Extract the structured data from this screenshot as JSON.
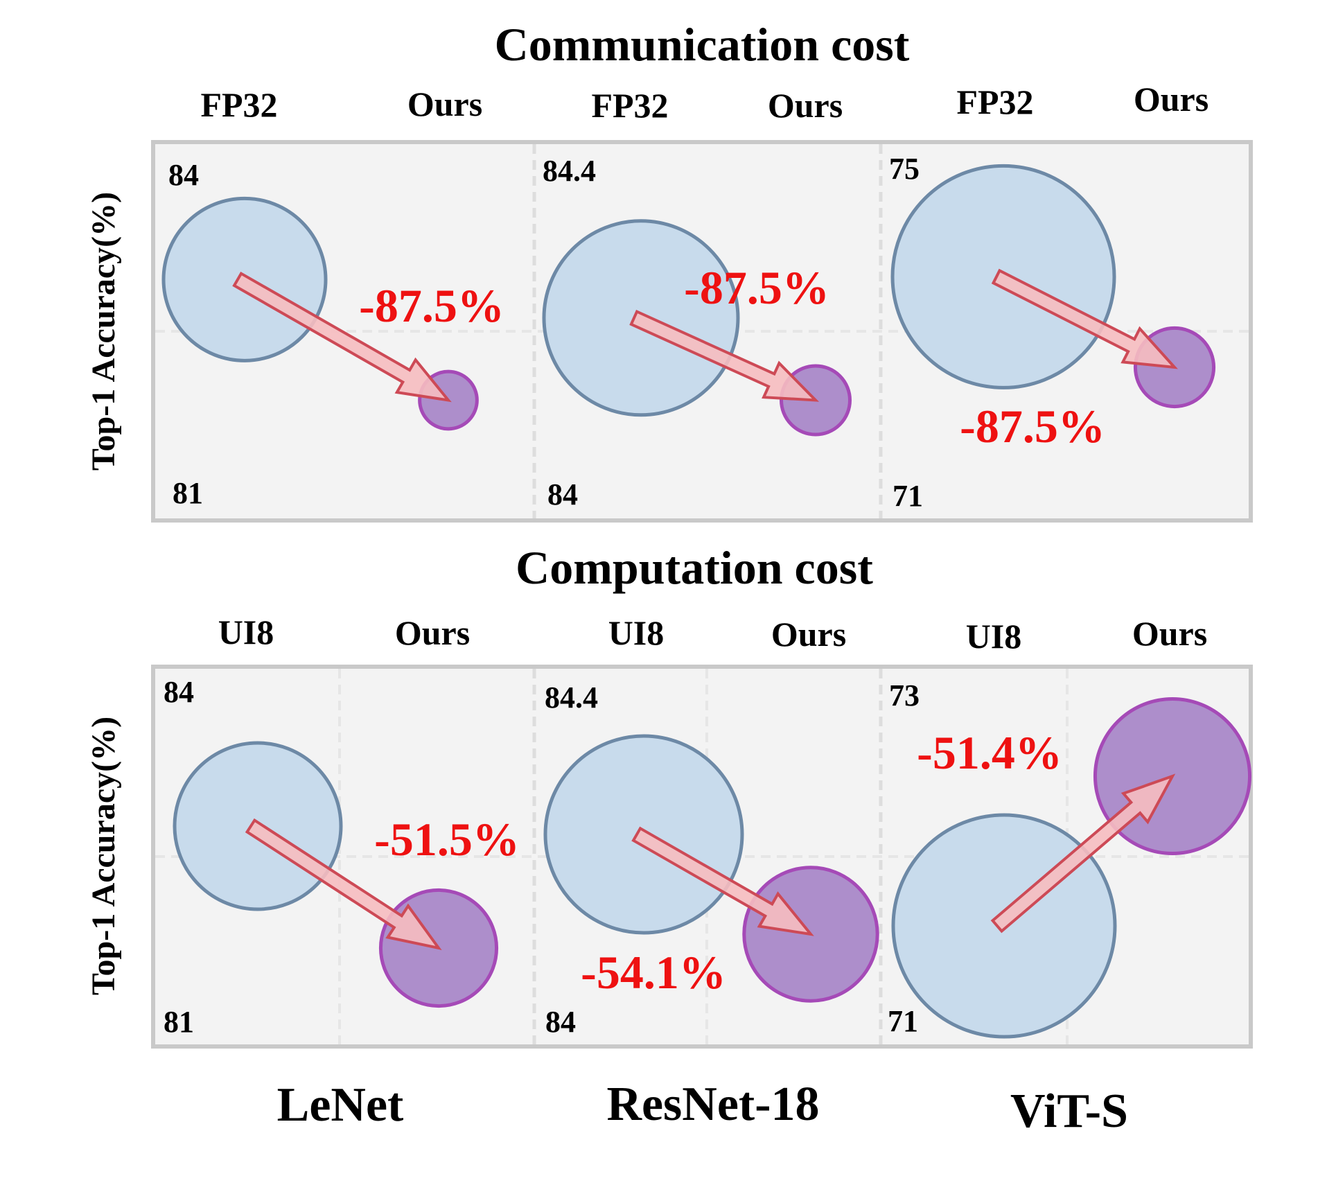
{
  "chart_data": {
    "type": "bubble-comparison",
    "columns": [
      "LeNet",
      "ResNet-18",
      "ViT-S"
    ],
    "y_axis_label": "Top-1 Accuracy(%)",
    "colors": {
      "baseline_fill": "#c8dbec",
      "baseline_stroke": "#6d89a6",
      "ours_fill": "#ad8ecb",
      "ours_stroke": "#a54ab7",
      "arrow_fill": "#f6bcc0",
      "arrow_stroke": "#cd4a56",
      "reduction_text": "#ee1111",
      "panel_bg": "#f3f3f3",
      "panel_border": "#c9c9c9",
      "divider": "#dddddd"
    },
    "panels": [
      {
        "title": "Communication cost",
        "baseline_name": "FP32",
        "ours_name": "Ours",
        "cells": [
          {
            "model": "LeNet",
            "y_top": "84",
            "y_bottom": "81",
            "ylim": [
              81,
              84
            ],
            "baseline_accuracy": 83.0,
            "baseline_relative_cost": 1.0,
            "ours_accuracy": 81.9,
            "ours_relative_cost": 0.125,
            "reduction": "-87.5%"
          },
          {
            "model": "ResNet-18",
            "y_top": "84.4",
            "y_bottom": "84",
            "ylim": [
              84,
              84.4
            ],
            "baseline_accuracy": 84.22,
            "baseline_relative_cost": 1.0,
            "ours_accuracy": 84.12,
            "ours_relative_cost": 0.125,
            "reduction": "-87.5%"
          },
          {
            "model": "ViT-S",
            "y_top": "75",
            "y_bottom": "71",
            "ylim": [
              71,
              75
            ],
            "baseline_accuracy": 73.7,
            "baseline_relative_cost": 1.0,
            "ours_accuracy": 72.6,
            "ours_relative_cost": 0.125,
            "reduction": "-87.5%"
          }
        ]
      },
      {
        "title": "Computation cost",
        "baseline_name": "UI8",
        "ours_name": "Ours",
        "cells": [
          {
            "model": "LeNet",
            "y_top": "84",
            "y_bottom": "81",
            "ylim": [
              81,
              84
            ],
            "baseline_accuracy": 82.8,
            "baseline_relative_cost": 1.0,
            "ours_accuracy": 81.7,
            "ours_relative_cost": 0.485,
            "reduction": "-51.5%"
          },
          {
            "model": "ResNet-18",
            "y_top": "84.4",
            "y_bottom": "84",
            "ylim": [
              84,
              84.4
            ],
            "baseline_accuracy": 84.23,
            "baseline_relative_cost": 1.0,
            "ours_accuracy": 84.11,
            "ours_relative_cost": 0.459,
            "reduction": "-54.1%"
          },
          {
            "model": "ViT-S",
            "y_top": "73",
            "y_bottom": "71",
            "ylim": [
              71,
              73
            ],
            "baseline_accuracy": 71.6,
            "baseline_relative_cost": 1.0,
            "ours_accuracy": 72.5,
            "ours_relative_cost": 0.486,
            "reduction": "-51.4%"
          }
        ]
      }
    ]
  }
}
